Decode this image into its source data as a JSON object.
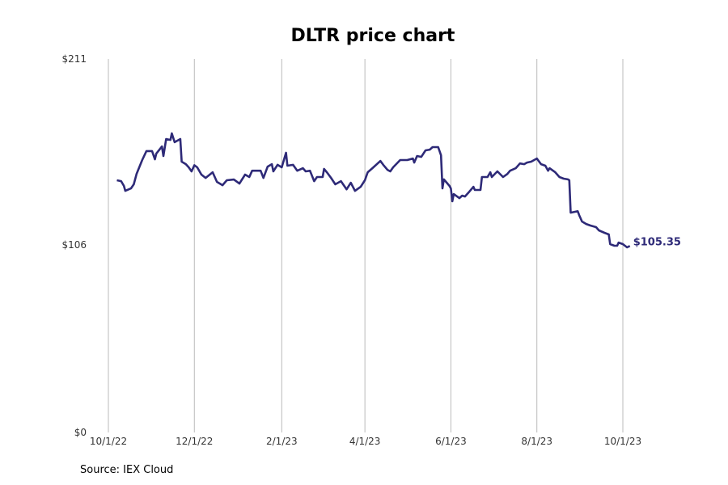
{
  "chart_data": {
    "type": "line",
    "title": "DLTR price chart",
    "xlabel": "",
    "ylabel": "",
    "ylim": [
      0,
      211
    ],
    "xlim": [
      "2022-10-01",
      "2023-10-01"
    ],
    "y_ticks": [
      0,
      106,
      211
    ],
    "y_tick_labels": [
      "$0",
      "$106",
      "$211"
    ],
    "x_ticks": [
      "2022-10-01",
      "2022-12-01",
      "2023-02-01",
      "2023-04-01",
      "2023-06-01",
      "2023-08-01",
      "2023-10-01"
    ],
    "x_tick_labels": [
      "10/1/22",
      "12/1/22",
      "2/1/23",
      "4/1/23",
      "6/1/23",
      "8/1/23",
      "10/1/23"
    ],
    "grid": "vertical",
    "line_color": "#2e2a78",
    "end_label": "$105.35",
    "series": [
      {
        "points": [
          [
            "2022-10-07",
            142.5
          ],
          [
            "2022-10-10",
            142
          ],
          [
            "2022-10-12",
            139.3
          ],
          [
            "2022-10-13",
            136.5
          ],
          [
            "2022-10-17",
            137.9
          ],
          [
            "2022-10-19",
            140.2
          ],
          [
            "2022-10-21",
            146
          ],
          [
            "2022-10-25",
            153.9
          ],
          [
            "2022-10-28",
            159
          ],
          [
            "2022-11-01",
            159
          ],
          [
            "2022-11-03",
            154.3
          ],
          [
            "2022-11-04",
            157.5
          ],
          [
            "2022-11-08",
            161.6
          ],
          [
            "2022-11-09",
            156.2
          ],
          [
            "2022-11-11",
            165.8
          ],
          [
            "2022-11-14",
            165.3
          ],
          [
            "2022-11-15",
            169
          ],
          [
            "2022-11-17",
            164
          ],
          [
            "2022-11-21",
            165.8
          ],
          [
            "2022-11-22",
            153
          ],
          [
            "2022-11-25",
            151.6
          ],
          [
            "2022-11-27",
            149.8
          ],
          [
            "2022-11-29",
            147.5
          ],
          [
            "2022-12-01",
            151
          ],
          [
            "2022-12-03",
            149.8
          ],
          [
            "2022-12-06",
            145.7
          ],
          [
            "2022-12-09",
            143.8
          ],
          [
            "2022-12-14",
            147
          ],
          [
            "2022-12-17",
            141.6
          ],
          [
            "2022-12-21",
            139.7
          ],
          [
            "2022-12-24",
            142.5
          ],
          [
            "2022-12-29",
            142.9
          ],
          [
            "2023-01-02",
            140.6
          ],
          [
            "2023-01-06",
            145.7
          ],
          [
            "2023-01-09",
            144.3
          ],
          [
            "2023-01-11",
            147.9
          ],
          [
            "2023-01-17",
            147.9
          ],
          [
            "2023-01-19",
            143.8
          ],
          [
            "2023-01-22",
            150.2
          ],
          [
            "2023-01-25",
            151.6
          ],
          [
            "2023-01-26",
            147.5
          ],
          [
            "2023-01-29",
            151.2
          ],
          [
            "2023-02-01",
            149.8
          ],
          [
            "2023-02-04",
            158
          ],
          [
            "2023-02-05",
            150.7
          ],
          [
            "2023-02-09",
            151.2
          ],
          [
            "2023-02-12",
            147.9
          ],
          [
            "2023-02-16",
            149.3
          ],
          [
            "2023-02-18",
            147.5
          ],
          [
            "2023-02-21",
            147.9
          ],
          [
            "2023-02-24",
            142
          ],
          [
            "2023-02-26",
            144.3
          ],
          [
            "2023-03-02",
            144.3
          ],
          [
            "2023-03-03",
            148.9
          ],
          [
            "2023-03-05",
            147
          ],
          [
            "2023-03-08",
            143.8
          ],
          [
            "2023-03-11",
            140.2
          ],
          [
            "2023-03-15",
            142
          ],
          [
            "2023-03-19",
            137.4
          ],
          [
            "2023-03-22",
            141.1
          ],
          [
            "2023-03-25",
            136.5
          ],
          [
            "2023-03-29",
            138.8
          ],
          [
            "2023-04-01",
            142.5
          ],
          [
            "2023-04-03",
            147
          ],
          [
            "2023-04-07",
            149.8
          ],
          [
            "2023-04-12",
            153.4
          ],
          [
            "2023-04-14",
            151.2
          ],
          [
            "2023-04-17",
            148.4
          ],
          [
            "2023-04-19",
            147.5
          ],
          [
            "2023-04-21",
            149.8
          ],
          [
            "2023-04-26",
            153.9
          ],
          [
            "2023-05-01",
            153.9
          ],
          [
            "2023-05-05",
            154.8
          ],
          [
            "2023-05-06",
            152.5
          ],
          [
            "2023-05-08",
            156.2
          ],
          [
            "2023-05-11",
            155.7
          ],
          [
            "2023-05-14",
            159.4
          ],
          [
            "2023-05-17",
            159.8
          ],
          [
            "2023-05-19",
            161.2
          ],
          [
            "2023-05-23",
            161.2
          ],
          [
            "2023-05-25",
            156.6
          ],
          [
            "2023-05-26",
            137.9
          ],
          [
            "2023-05-27",
            143
          ],
          [
            "2023-05-31",
            139.3
          ],
          [
            "2023-06-01",
            137.9
          ],
          [
            "2023-06-02",
            130.6
          ],
          [
            "2023-06-03",
            134.7
          ],
          [
            "2023-06-07",
            132.4
          ],
          [
            "2023-06-09",
            133.8
          ],
          [
            "2023-06-11",
            133.3
          ],
          [
            "2023-06-14",
            136
          ],
          [
            "2023-06-17",
            138.8
          ],
          [
            "2023-06-18",
            137
          ],
          [
            "2023-06-22",
            137
          ],
          [
            "2023-06-23",
            144.3
          ],
          [
            "2023-06-27",
            144.3
          ],
          [
            "2023-06-29",
            147
          ],
          [
            "2023-06-30",
            144.3
          ],
          [
            "2023-07-04",
            147.5
          ],
          [
            "2023-07-08",
            144.3
          ],
          [
            "2023-07-11",
            146
          ],
          [
            "2023-07-13",
            147.9
          ],
          [
            "2023-07-17",
            149.3
          ],
          [
            "2023-07-20",
            152
          ],
          [
            "2023-07-23",
            151.6
          ],
          [
            "2023-07-25",
            152.5
          ],
          [
            "2023-07-28",
            153
          ],
          [
            "2023-08-01",
            154.8
          ],
          [
            "2023-08-04",
            151.6
          ],
          [
            "2023-08-07",
            150.7
          ],
          [
            "2023-08-09",
            147.9
          ],
          [
            "2023-08-10",
            149.3
          ],
          [
            "2023-08-14",
            147
          ],
          [
            "2023-08-17",
            144.3
          ],
          [
            "2023-08-20",
            143.4
          ],
          [
            "2023-08-23",
            143
          ],
          [
            "2023-08-24",
            142.5
          ],
          [
            "2023-08-25",
            124.2
          ],
          [
            "2023-08-28",
            124.7
          ],
          [
            "2023-08-30",
            125
          ],
          [
            "2023-08-31",
            122.8
          ],
          [
            "2023-09-02",
            119.2
          ],
          [
            "2023-09-05",
            117.8
          ],
          [
            "2023-09-08",
            116.9
          ],
          [
            "2023-09-12",
            116
          ],
          [
            "2023-09-14",
            114.2
          ],
          [
            "2023-09-18",
            112.8
          ],
          [
            "2023-09-21",
            111.9
          ],
          [
            "2023-09-22",
            106.4
          ],
          [
            "2023-09-25",
            105.5
          ],
          [
            "2023-09-27",
            105.5
          ],
          [
            "2023-09-28",
            107.3
          ],
          [
            "2023-10-01",
            106.4
          ],
          [
            "2023-10-04",
            104.6
          ],
          [
            "2023-10-06",
            105.35
          ]
        ]
      }
    ]
  },
  "source": "Source: IEX Cloud"
}
